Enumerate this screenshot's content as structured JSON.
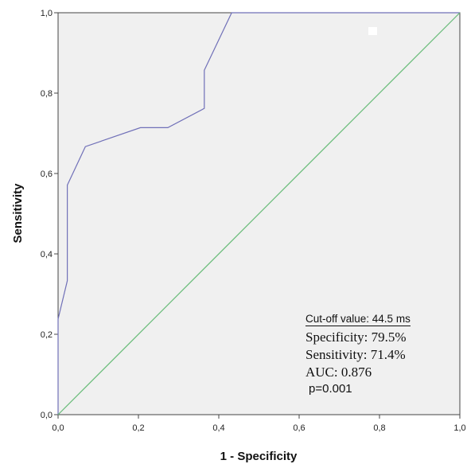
{
  "chart_data": {
    "type": "line",
    "xlabel": "1 - Specificity",
    "ylabel": "Sensitivity",
    "xlim": [
      0,
      1
    ],
    "ylim": [
      0,
      1
    ],
    "x_ticks": [
      "0,0",
      "0,2",
      "0,4",
      "0,6",
      "0,8",
      "1,0"
    ],
    "y_ticks": [
      "0,0",
      "0,2",
      "0,4",
      "0,6",
      "0,8",
      "1,0"
    ],
    "grid": false,
    "series": [
      {
        "color": "#7070b8",
        "x": [
          0.0,
          0.0,
          0.023,
          0.023,
          0.023,
          0.068,
          0.205,
          0.273,
          0.364,
          0.364,
          0.364,
          0.432,
          1.0
        ],
        "y": [
          0.0,
          0.238,
          0.333,
          0.333,
          0.571,
          0.667,
          0.714,
          0.714,
          0.762,
          0.762,
          0.857,
          1.0,
          1.0
        ]
      },
      {
        "color": "#66bb77",
        "x": [
          0,
          1
        ],
        "y": [
          0,
          1
        ]
      }
    ],
    "annotations": {
      "cutoff": "Cut-off value: 44.5 ms",
      "specificity": "Specificity: 79.5%",
      "sensitivity": "Sensitivity: 71.4%",
      "auc": "AUC: 0.876",
      "p": "p=0.001"
    }
  }
}
